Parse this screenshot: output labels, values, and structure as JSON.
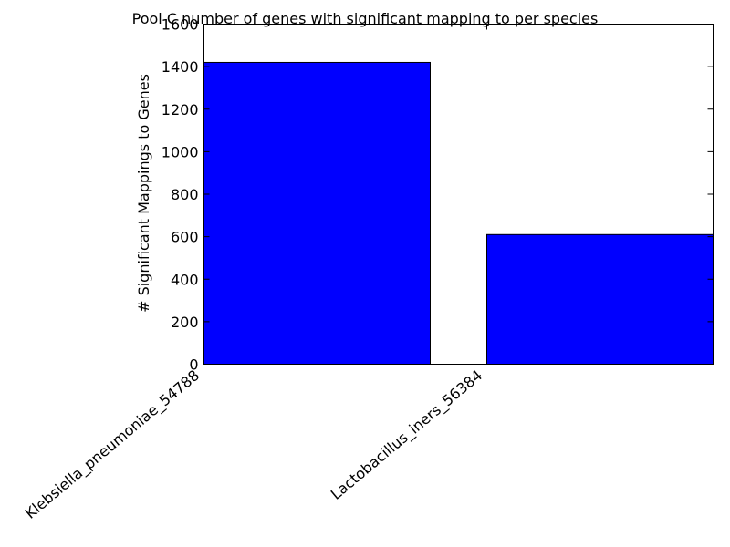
{
  "chart_data": {
    "type": "bar",
    "title": "Pool C number of genes with significant mapping to per species",
    "xlabel": "",
    "ylabel": "# Significant Mappings to Genes",
    "categories": [
      "Klebsiella_pneumoniae_54788",
      "Lactobacillus_iners_56384"
    ],
    "values": [
      1420,
      610
    ],
    "ylim": [
      0,
      1600
    ],
    "yticks": [
      0,
      200,
      400,
      600,
      800,
      1000,
      1200,
      1400,
      1600
    ],
    "grid": false,
    "bar_color": "#0000ff"
  }
}
